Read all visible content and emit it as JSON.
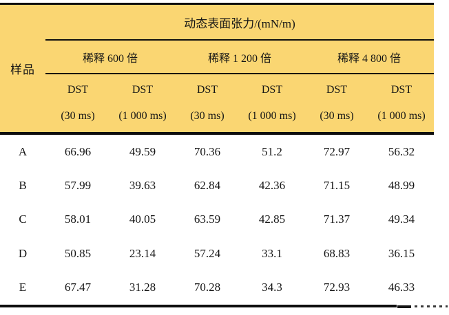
{
  "table": {
    "title": "动态表面张力/(mN/m)",
    "sample_header": "样品",
    "groups": [
      {
        "label": "稀释 600 倍"
      },
      {
        "label": "稀释 1 200 倍"
      },
      {
        "label": "稀释 4 800 倍"
      }
    ],
    "subheaders": [
      {
        "line1": "DST",
        "line2": "(30 ms)"
      },
      {
        "line1": "DST",
        "line2": "(1 000 ms)"
      },
      {
        "line1": "DST",
        "line2": "(30 ms)"
      },
      {
        "line1": "DST",
        "line2": "(1 000 ms)"
      },
      {
        "line1": "DST",
        "line2": "(30 ms)"
      },
      {
        "line1": "DST",
        "line2": "(1 000 ms)"
      }
    ],
    "rows": [
      {
        "sample": "A",
        "values": [
          "66.96",
          "49.59",
          "70.36",
          "51.2",
          "72.97",
          "56.32"
        ]
      },
      {
        "sample": "B",
        "values": [
          "57.99",
          "39.63",
          "62.84",
          "42.36",
          "71.15",
          "48.99"
        ]
      },
      {
        "sample": "C",
        "values": [
          "58.01",
          "40.05",
          "63.59",
          "42.85",
          "71.37",
          "49.34"
        ]
      },
      {
        "sample": "D",
        "values": [
          "50.85",
          "23.14",
          "57.24",
          "33.1",
          "68.83",
          "36.15"
        ]
      },
      {
        "sample": "E",
        "values": [
          "67.47",
          "31.28",
          "70.28",
          "34.3",
          "72.93",
          "46.33"
        ]
      }
    ],
    "colors": {
      "header_bg": "#FAD672",
      "rule": "#0e0e0e",
      "text": "#151515"
    }
  }
}
